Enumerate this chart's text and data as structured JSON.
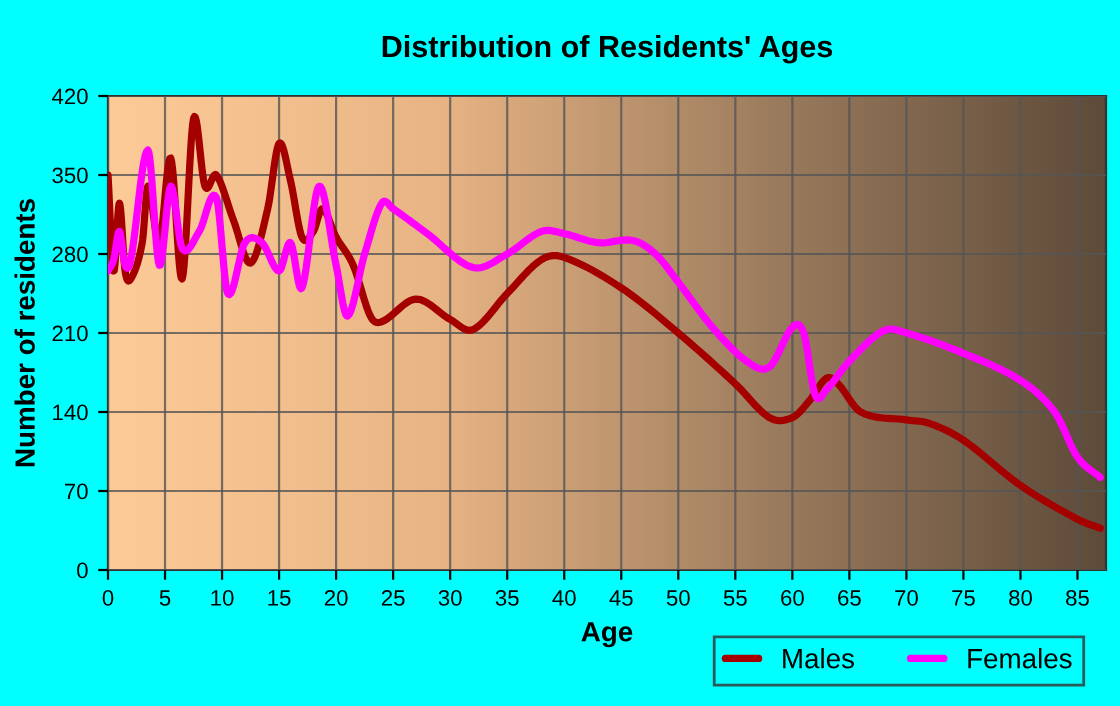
{
  "chart_data": {
    "type": "line",
    "title": "Distribution of Residents' Ages",
    "xlabel": "Age",
    "ylabel": "Number of residents",
    "xlim": [
      0,
      87.5
    ],
    "xticks": [
      0,
      5,
      10,
      15,
      20,
      25,
      30,
      35,
      40,
      45,
      50,
      55,
      60,
      65,
      70,
      75,
      80,
      85
    ],
    "ylim": [
      0,
      420
    ],
    "yticks": [
      0,
      70,
      140,
      210,
      280,
      350,
      420
    ],
    "grid": true,
    "legend": "bottom right",
    "marker": "none",
    "line_style": "solid",
    "series": [
      {
        "name": "Males",
        "color": "#a50000",
        "x": [
          0,
          0.5,
          1,
          1.5,
          2,
          3,
          3.5,
          4.5,
          5.5,
          6.5,
          7.5,
          8.5,
          9.5,
          11,
          12.5,
          14,
          15,
          16,
          17,
          18,
          18.8,
          20,
          21.5,
          23,
          24,
          27,
          30,
          32,
          35,
          38,
          40,
          45,
          50,
          55,
          58,
          60,
          61.5,
          63,
          64,
          66,
          70,
          72,
          75,
          80,
          85,
          87
        ],
        "values": [
          350,
          265,
          325,
          265,
          258,
          290,
          340,
          290,
          365,
          258,
          400,
          340,
          350,
          310,
          272,
          320,
          378,
          345,
          295,
          300,
          320,
          295,
          270,
          225,
          220,
          240,
          222,
          213,
          245,
          275,
          277,
          250,
          210,
          165,
          135,
          135,
          150,
          170,
          165,
          140,
          133,
          130,
          115,
          75,
          45,
          37
        ]
      },
      {
        "name": "Females",
        "color": "#ff00ff",
        "x": [
          0,
          0.5,
          1,
          1.5,
          2,
          3.5,
          4.5,
          5.5,
          6.5,
          8,
          9.5,
          10.5,
          12,
          13.5,
          15,
          16,
          17,
          18.5,
          20,
          21,
          22.5,
          24,
          25,
          28,
          32,
          35,
          38,
          40,
          43,
          46,
          48,
          50,
          53,
          56,
          58,
          60,
          61,
          62,
          63,
          65,
          68,
          70,
          75,
          80,
          83,
          85,
          87
        ],
        "values": [
          265,
          275,
          300,
          270,
          275,
          372,
          270,
          340,
          285,
          300,
          330,
          245,
          290,
          290,
          265,
          290,
          250,
          340,
          270,
          225,
          280,
          325,
          320,
          298,
          268,
          280,
          300,
          298,
          290,
          292,
          280,
          255,
          215,
          185,
          180,
          215,
          210,
          155,
          160,
          185,
          212,
          210,
          192,
          168,
          140,
          100,
          82
        ]
      }
    ]
  }
}
